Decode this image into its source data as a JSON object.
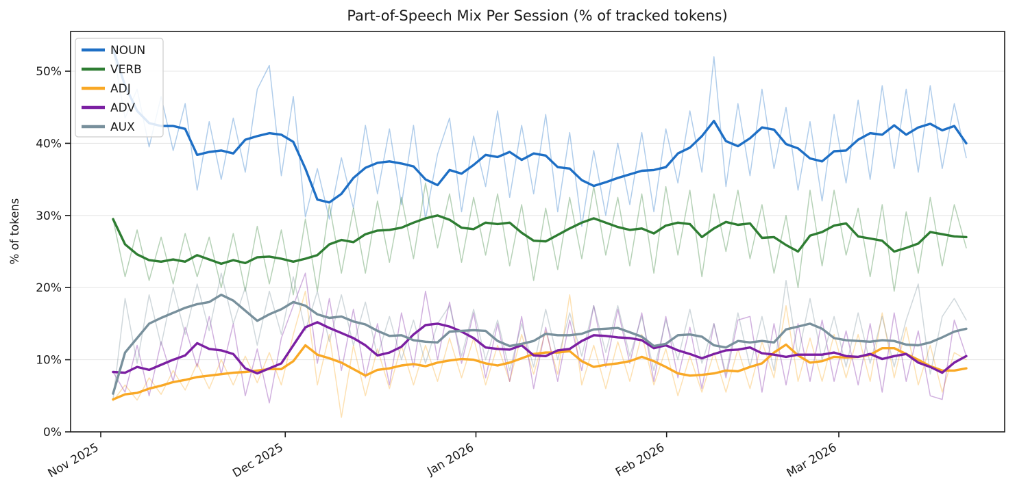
{
  "chart_data": {
    "type": "line",
    "title": "Part-of-Speech Mix Per Session (% of tracked tokens)",
    "ylabel": "% of tokens",
    "grid": "horizontal",
    "legend_position": "upper left",
    "line_styles": "each series drawn twice: light thin line = raw per-session values, bold line = smoothed (rolling-mean) trend",
    "x_axis": {
      "unit": "session date",
      "start": "2025-11-03",
      "end": "2026-03-23",
      "points_every_days": 2,
      "tick_labels": [
        "Nov 2025",
        "Dec 2025",
        "Jan 2026",
        "Feb 2026",
        "Mar 2026"
      ],
      "tick_day_offsets_from_nov1": [
        0,
        30,
        61,
        92,
        120
      ]
    },
    "y_axis": {
      "tick_values": [
        0,
        10,
        20,
        30,
        40,
        50
      ],
      "tick_labels": [
        "0%",
        "10%",
        "20%",
        "30%",
        "40%",
        "50%"
      ],
      "ylim": [
        0,
        55.5
      ]
    },
    "series": [
      {
        "name": "NOUN",
        "color": "#1e6fc5",
        "smoothed": [
          53.0,
          48.0,
          44.5,
          42.8,
          42.4,
          42.4,
          42.0,
          38.4,
          38.8,
          39.0,
          38.6,
          40.5,
          41.0,
          41.4,
          41.2,
          40.2,
          36.5,
          32.2,
          31.8,
          33.0,
          35.2,
          36.6,
          37.3,
          37.5,
          37.2,
          36.8,
          35.0,
          34.2,
          36.3,
          35.8,
          37.0,
          38.4,
          38.1,
          38.8,
          37.7,
          38.6,
          38.3,
          36.7,
          36.5,
          34.9,
          34.1,
          34.6,
          35.2,
          35.7,
          36.2,
          36.3,
          36.7,
          38.6,
          39.4,
          41.0,
          43.1,
          40.3,
          39.6,
          40.7,
          42.2,
          41.9,
          39.9,
          39.3,
          37.9,
          37.5,
          38.9,
          39.0,
          40.5,
          41.4,
          41.2,
          42.5,
          41.2,
          42.2,
          42.7,
          41.8,
          42.4,
          40.0
        ],
        "raw": [
          53.0,
          43.5,
          47.5,
          39.5,
          46.5,
          39.0,
          45.5,
          33.5,
          43.0,
          35.0,
          43.5,
          36.0,
          47.5,
          50.8,
          35.5,
          46.5,
          29.8,
          36.5,
          29.5,
          38.0,
          31.0,
          42.5,
          33.0,
          42.0,
          31.5,
          42.5,
          29.5,
          38.5,
          43.5,
          30.5,
          41.0,
          34.0,
          44.5,
          32.5,
          42.5,
          33.0,
          44.0,
          30.5,
          41.5,
          28.5,
          39.0,
          30.0,
          40.0,
          31.5,
          41.5,
          30.5,
          42.0,
          34.5,
          44.5,
          36.0,
          52.0,
          34.0,
          45.5,
          35.5,
          47.5,
          36.5,
          45.0,
          33.5,
          43.0,
          32.0,
          44.0,
          34.5,
          46.0,
          35.0,
          48.0,
          36.5,
          47.5,
          36.0,
          48.0,
          36.5,
          45.5,
          38.0
        ]
      },
      {
        "name": "VERB",
        "color": "#2e7d32",
        "smoothed": [
          29.5,
          26.0,
          24.6,
          23.8,
          23.6,
          23.9,
          23.6,
          24.5,
          23.9,
          23.3,
          23.8,
          23.4,
          24.2,
          24.3,
          24.0,
          23.6,
          24.0,
          24.5,
          26.0,
          26.6,
          26.3,
          27.4,
          27.9,
          28.0,
          28.3,
          29.0,
          29.6,
          30.0,
          29.4,
          28.3,
          28.1,
          29.0,
          28.8,
          29.0,
          27.6,
          26.5,
          26.4,
          27.3,
          28.2,
          29.0,
          29.6,
          29.0,
          28.4,
          28.0,
          28.2,
          27.5,
          28.6,
          29.0,
          28.8,
          27.0,
          28.2,
          29.1,
          28.7,
          28.9,
          26.9,
          27.0,
          25.9,
          25.0,
          27.2,
          27.7,
          28.6,
          28.9,
          27.1,
          26.8,
          26.5,
          25.0,
          25.5,
          26.1,
          27.7,
          27.4,
          27.1,
          27.0
        ],
        "raw": [
          29.5,
          21.5,
          28.0,
          21.0,
          27.0,
          20.5,
          27.5,
          21.5,
          27.0,
          20.0,
          27.5,
          19.5,
          28.5,
          20.5,
          28.0,
          19.0,
          29.5,
          19.5,
          31.5,
          22.0,
          31.0,
          22.0,
          32.0,
          23.5,
          32.5,
          24.0,
          34.5,
          25.5,
          33.0,
          23.5,
          32.5,
          24.5,
          33.0,
          23.0,
          31.5,
          21.0,
          31.0,
          22.5,
          32.5,
          24.0,
          34.0,
          24.5,
          32.5,
          23.0,
          33.0,
          22.0,
          34.0,
          24.5,
          33.5,
          21.5,
          33.0,
          25.0,
          33.5,
          24.0,
          31.5,
          22.0,
          30.0,
          20.0,
          33.5,
          23.0,
          33.5,
          24.5,
          31.0,
          21.5,
          31.5,
          19.5,
          30.5,
          22.0,
          32.5,
          23.0,
          31.5,
          25.5
        ]
      },
      {
        "name": "ADJ",
        "color": "#f9a825",
        "smoothed": [
          4.5,
          5.2,
          5.4,
          6.0,
          6.4,
          6.9,
          7.2,
          7.6,
          7.8,
          8.0,
          8.2,
          8.3,
          8.5,
          8.7,
          8.7,
          9.8,
          12.0,
          10.7,
          10.2,
          9.6,
          8.7,
          7.8,
          8.6,
          8.8,
          9.2,
          9.4,
          9.1,
          9.6,
          9.9,
          10.1,
          10.0,
          9.5,
          9.2,
          9.6,
          10.2,
          10.8,
          11.0,
          11.0,
          11.2,
          9.8,
          9.0,
          9.3,
          9.5,
          9.8,
          10.4,
          9.8,
          9.0,
          8.1,
          7.8,
          7.9,
          8.1,
          8.5,
          8.4,
          9.0,
          9.5,
          11.0,
          12.1,
          10.6,
          9.6,
          9.8,
          10.4,
          10.3,
          10.4,
          10.7,
          11.6,
          11.6,
          10.8,
          10.0,
          9.1,
          8.5,
          8.5,
          8.8
        ],
        "raw": [
          4.3,
          6.5,
          4.4,
          7.5,
          5.2,
          8.5,
          5.8,
          9.5,
          6.0,
          10.0,
          6.5,
          10.5,
          6.8,
          11.0,
          6.5,
          13.5,
          19.5,
          6.5,
          13.5,
          2.0,
          12.0,
          5.0,
          11.5,
          6.0,
          12.0,
          6.5,
          12.0,
          7.0,
          13.0,
          7.5,
          13.0,
          6.5,
          12.0,
          7.0,
          13.5,
          8.0,
          14.0,
          8.0,
          19.0,
          6.5,
          12.0,
          6.0,
          12.5,
          7.0,
          13.5,
          6.5,
          11.5,
          5.0,
          10.5,
          5.5,
          11.0,
          5.5,
          11.5,
          6.0,
          12.5,
          7.5,
          17.5,
          7.0,
          13.0,
          7.0,
          13.5,
          7.5,
          13.5,
          7.0,
          16.5,
          7.5,
          14.5,
          6.5,
          12.0,
          5.5,
          11.0,
          10.0
        ]
      },
      {
        "name": "ADV",
        "color": "#7b1fa2",
        "smoothed": [
          8.3,
          8.2,
          9.0,
          8.6,
          9.3,
          10.0,
          10.6,
          12.3,
          11.5,
          11.3,
          10.8,
          8.8,
          8.1,
          8.8,
          9.5,
          12.0,
          14.5,
          15.2,
          14.4,
          13.7,
          13.0,
          12.0,
          10.6,
          11.0,
          11.8,
          13.5,
          14.8,
          15.0,
          14.6,
          13.9,
          13.0,
          11.7,
          11.5,
          11.4,
          12.0,
          10.6,
          10.5,
          11.3,
          11.5,
          12.6,
          13.4,
          13.3,
          13.1,
          13.0,
          12.7,
          11.6,
          12.0,
          11.3,
          10.8,
          10.2,
          10.8,
          11.3,
          11.4,
          11.7,
          10.9,
          10.7,
          10.4,
          10.7,
          10.7,
          10.7,
          11.0,
          10.5,
          10.4,
          10.8,
          10.1,
          10.5,
          10.8,
          9.6,
          9.0,
          8.2,
          9.6,
          10.5
        ],
        "raw": [
          8.3,
          5.5,
          12.0,
          5.0,
          12.5,
          7.0,
          14.5,
          9.0,
          16.0,
          8.0,
          15.0,
          5.0,
          11.5,
          4.0,
          13.0,
          17.5,
          22.0,
          9.5,
          18.5,
          8.5,
          17.0,
          7.5,
          15.0,
          6.5,
          16.5,
          9.0,
          19.5,
          10.0,
          18.0,
          9.5,
          16.5,
          7.5,
          15.0,
          7.0,
          16.0,
          6.0,
          14.5,
          7.0,
          15.5,
          8.5,
          17.5,
          9.0,
          17.0,
          9.5,
          16.5,
          7.0,
          16.0,
          7.5,
          14.5,
          6.0,
          15.0,
          7.5,
          15.5,
          16.0,
          5.5,
          15.0,
          6.5,
          15.0,
          7.0,
          15.5,
          7.0,
          14.0,
          6.5,
          15.0,
          5.5,
          16.5,
          7.0,
          14.0,
          5.0,
          4.5,
          15.5,
          10.5
        ]
      },
      {
        "name": "AUX",
        "color": "#78909c",
        "smoothed": [
          5.3,
          11.0,
          13.0,
          15.0,
          15.8,
          16.5,
          17.2,
          17.7,
          18.0,
          19.0,
          18.2,
          16.8,
          15.4,
          16.3,
          17.0,
          18.0,
          17.5,
          16.3,
          15.8,
          16.0,
          15.3,
          14.9,
          14.0,
          13.3,
          13.4,
          12.7,
          12.5,
          12.4,
          13.9,
          14.0,
          14.1,
          14.0,
          12.6,
          11.9,
          12.2,
          12.6,
          13.6,
          13.4,
          13.4,
          13.6,
          14.2,
          14.3,
          14.4,
          13.8,
          13.2,
          11.9,
          12.2,
          13.4,
          13.5,
          13.2,
          12.0,
          11.7,
          12.6,
          12.4,
          12.6,
          12.4,
          14.2,
          14.6,
          15.0,
          14.3,
          13.0,
          12.7,
          12.6,
          12.5,
          12.7,
          12.6,
          12.1,
          12.0,
          12.4,
          13.1,
          13.9,
          14.3
        ],
        "raw": [
          4.5,
          18.5,
          9.5,
          19.0,
          12.0,
          20.0,
          13.5,
          20.5,
          14.0,
          22.0,
          15.0,
          20.0,
          12.0,
          19.5,
          13.5,
          21.5,
          14.0,
          19.5,
          12.5,
          19.0,
          12.0,
          18.0,
          10.5,
          16.0,
          10.0,
          15.5,
          9.5,
          15.0,
          17.5,
          10.5,
          17.0,
          10.0,
          15.5,
          8.5,
          15.0,
          9.0,
          17.0,
          10.0,
          16.5,
          10.5,
          17.5,
          11.0,
          17.5,
          10.5,
          16.0,
          8.5,
          15.5,
          10.0,
          17.0,
          9.5,
          15.0,
          8.0,
          16.5,
          9.0,
          16.0,
          8.5,
          21.0,
          10.5,
          18.5,
          10.0,
          16.0,
          9.0,
          16.5,
          9.5,
          16.0,
          9.0,
          15.5,
          20.5,
          8.0,
          16.0,
          18.5,
          15.5
        ]
      }
    ],
    "style_colors": {
      "gridline": "#e7e7e7",
      "axis": "#1a1a1a",
      "legend_border": "#cccccc",
      "background": "#ffffff"
    }
  }
}
